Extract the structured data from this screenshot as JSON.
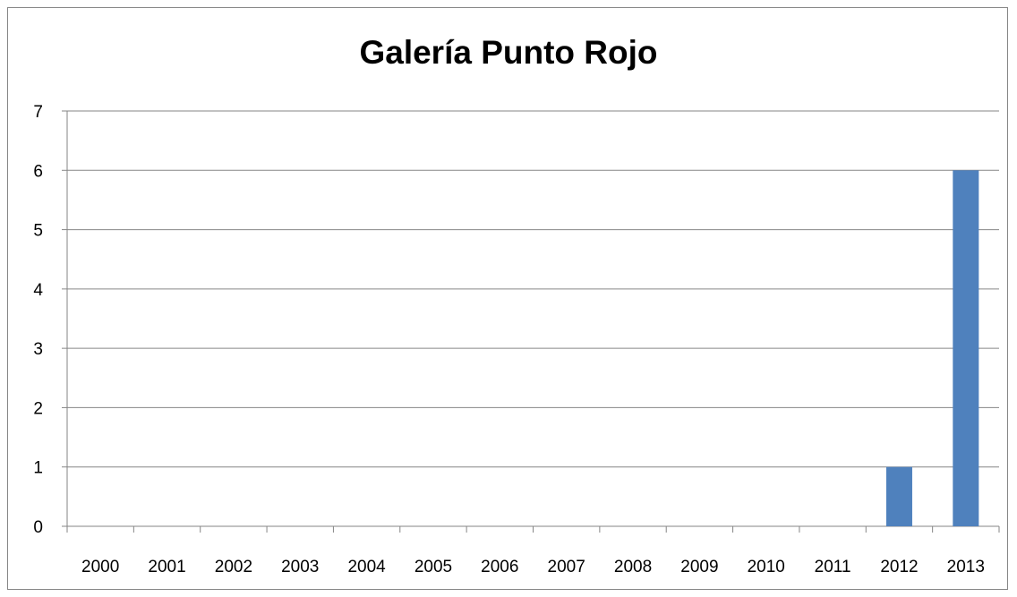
{
  "chart_data": {
    "type": "bar",
    "title": "Galería Punto Rojo",
    "categories": [
      "2000",
      "2001",
      "2002",
      "2003",
      "2004",
      "2005",
      "2006",
      "2007",
      "2008",
      "2009",
      "2010",
      "2011",
      "2012",
      "2013"
    ],
    "series": [
      {
        "values": [
          0,
          0,
          0,
          0,
          0,
          0,
          0,
          0,
          0,
          0,
          0,
          0,
          1,
          6
        ]
      }
    ],
    "ylim": [
      0,
      7
    ],
    "yticks": [
      0,
      1,
      2,
      3,
      4,
      5,
      6,
      7
    ],
    "grid": true,
    "legend": "none",
    "bar_color": "#4F81BD"
  }
}
